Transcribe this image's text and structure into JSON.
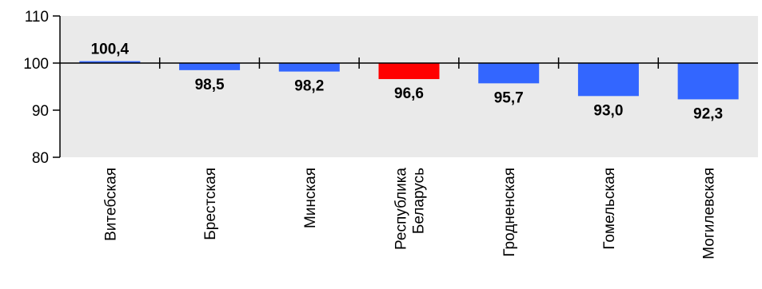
{
  "chart_data": {
    "type": "bar",
    "categories": [
      [
        "Витебская"
      ],
      [
        "Брестская"
      ],
      [
        "Минская"
      ],
      [
        "Республика",
        "Беларусь"
      ],
      [
        "Гродненская"
      ],
      [
        "Гомельская"
      ],
      [
        "Могилевская"
      ]
    ],
    "values": [
      100.4,
      98.5,
      98.2,
      96.6,
      95.7,
      93.0,
      92.3
    ],
    "value_labels": [
      "100,4",
      "98,5",
      "98,2",
      "96,6",
      "95,7",
      "93,0",
      "92,3"
    ],
    "baseline": 100,
    "ylim": [
      80,
      110
    ],
    "yticks": [
      80,
      90,
      100,
      110
    ],
    "title": "",
    "xlabel": "",
    "ylabel": "",
    "grid": false,
    "colors": {
      "bar": "#3366ff",
      "highlight": "#ff0000",
      "plot_background": "#eaeaea",
      "axis": "#000000"
    },
    "highlight_index": 3
  }
}
